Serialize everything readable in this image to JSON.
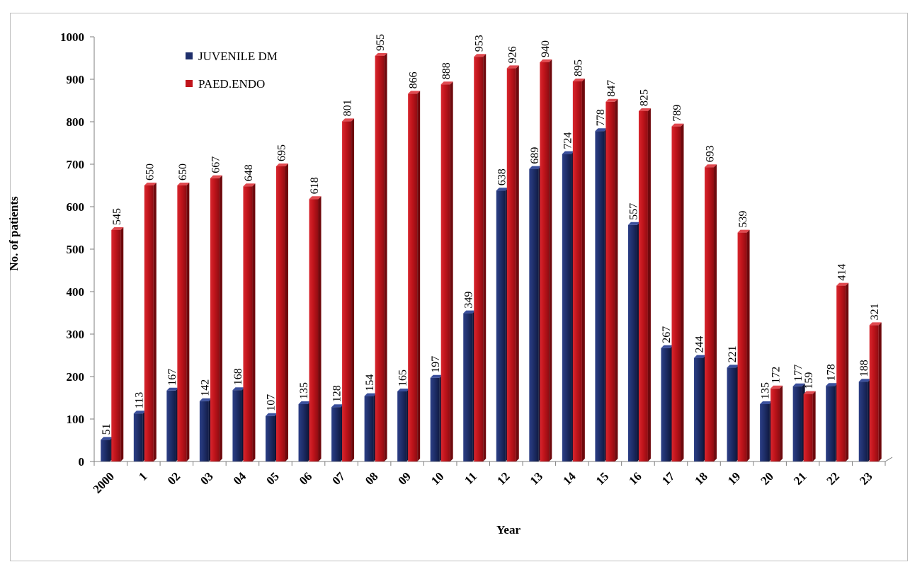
{
  "chart_data": {
    "type": "bar",
    "title": "",
    "xlabel": "Year",
    "ylabel": "No. of patients",
    "ylim": [
      0,
      1000
    ],
    "yticks": [
      "0",
      "100",
      "200",
      "300",
      "400",
      "500",
      "600",
      "700",
      "800",
      "900",
      "1000"
    ],
    "grid": false,
    "legend_position": "top-left",
    "categories": [
      "2000",
      "1",
      "02",
      "03",
      "04",
      "05",
      "06",
      "07",
      "08",
      "09",
      "10",
      "11",
      "12",
      "13",
      "14",
      "15",
      "16",
      "17",
      "18",
      "19",
      "20",
      "21",
      "22",
      "23"
    ],
    "series": [
      {
        "name": "JUVENILE DM",
        "color": "#1f2f6b",
        "values": [
          51,
          113,
          167,
          142,
          168,
          107,
          135,
          128,
          154,
          165,
          197,
          349,
          638,
          689,
          724,
          778,
          557,
          267,
          244,
          221,
          135,
          177,
          178,
          188
        ]
      },
      {
        "name": "PAED.ENDO",
        "color": "#c0141b",
        "values": [
          545,
          650,
          650,
          667,
          648,
          695,
          618,
          801,
          955,
          866,
          888,
          953,
          926,
          940,
          895,
          847,
          825,
          789,
          693,
          539,
          172,
          159,
          414,
          321
        ]
      }
    ]
  }
}
